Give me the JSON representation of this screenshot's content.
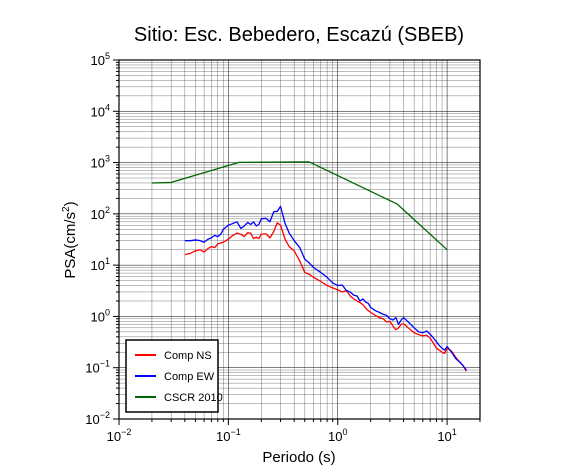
{
  "chart_data": {
    "type": "line",
    "title": "Sitio: Esc. Bebedero, Escazú (SBEB)",
    "xlabel": "Periodo (s)",
    "ylabel": "PSA(cm/s",
    "ylabel_sup": "2",
    "ylabel_close": ")",
    "xscale": "log",
    "yscale": "log",
    "xlim": [
      0.01,
      20
    ],
    "ylim": [
      0.01,
      100000
    ],
    "grid": true,
    "legend_position": "bottom-left",
    "x_ticks": [
      {
        "value": 0.01,
        "base": "10",
        "exp": "−2"
      },
      {
        "value": 0.1,
        "base": "10",
        "exp": "−1"
      },
      {
        "value": 1,
        "base": "10",
        "exp": "0"
      },
      {
        "value": 10,
        "base": "10",
        "exp": "1"
      }
    ],
    "y_ticks": [
      {
        "value": 0.01,
        "base": "10",
        "exp": "−2"
      },
      {
        "value": 0.1,
        "base": "10",
        "exp": "−1"
      },
      {
        "value": 1,
        "base": "10",
        "exp": "0"
      },
      {
        "value": 10,
        "base": "10",
        "exp": "1"
      },
      {
        "value": 100,
        "base": "10",
        "exp": "2"
      },
      {
        "value": 1000,
        "base": "10",
        "exp": "3"
      },
      {
        "value": 10000,
        "base": "10",
        "exp": "4"
      },
      {
        "value": 100000,
        "base": "10",
        "exp": "5"
      }
    ],
    "series": [
      {
        "name": "Comp NS",
        "color": "#ff0000",
        "x": [
          0.04,
          0.045,
          0.05,
          0.055,
          0.06,
          0.065,
          0.07,
          0.075,
          0.08,
          0.085,
          0.09,
          0.1,
          0.11,
          0.12,
          0.13,
          0.14,
          0.15,
          0.16,
          0.17,
          0.18,
          0.19,
          0.2,
          0.22,
          0.24,
          0.26,
          0.28,
          0.3,
          0.33,
          0.36,
          0.4,
          0.45,
          0.5,
          0.55,
          0.6,
          0.7,
          0.8,
          0.9,
          1.0,
          1.1,
          1.2,
          1.3,
          1.4,
          1.5,
          1.6,
          1.7,
          1.8,
          1.9,
          2.0,
          2.2,
          2.4,
          2.6,
          2.8,
          3.0,
          3.2,
          3.4,
          3.6,
          3.8,
          4.0,
          4.5,
          5.0,
          5.5,
          6.0,
          6.5,
          7.0,
          7.5,
          8.0,
          8.5,
          9.0,
          9.5,
          10.0,
          11.0,
          12.0,
          13.0,
          14.0,
          15.0
        ],
        "y": [
          16,
          17,
          19,
          20,
          18,
          21,
          23,
          22,
          26,
          27,
          28,
          32,
          38,
          42,
          40,
          36,
          43,
          42,
          33,
          35,
          33,
          40,
          41,
          34,
          45,
          67,
          60,
          32,
          23,
          19,
          12,
          7.2,
          6.6,
          5.8,
          4.8,
          4.0,
          3.6,
          3.3,
          3.0,
          3.2,
          2.5,
          2.2,
          2.0,
          1.85,
          1.7,
          1.45,
          1.3,
          1.2,
          1.05,
          0.95,
          0.9,
          0.78,
          0.8,
          0.65,
          0.55,
          0.6,
          0.7,
          0.72,
          0.58,
          0.48,
          0.44,
          0.42,
          0.43,
          0.38,
          0.3,
          0.24,
          0.22,
          0.2,
          0.19,
          0.24,
          0.21,
          0.16,
          0.13,
          0.11,
          0.085
        ]
      },
      {
        "name": "Comp EW",
        "color": "#0000ff",
        "x": [
          0.04,
          0.045,
          0.05,
          0.055,
          0.06,
          0.065,
          0.07,
          0.075,
          0.08,
          0.085,
          0.09,
          0.1,
          0.11,
          0.12,
          0.13,
          0.14,
          0.15,
          0.16,
          0.17,
          0.18,
          0.19,
          0.2,
          0.22,
          0.24,
          0.26,
          0.28,
          0.3,
          0.33,
          0.36,
          0.4,
          0.45,
          0.5,
          0.55,
          0.6,
          0.7,
          0.8,
          0.9,
          1.0,
          1.1,
          1.2,
          1.3,
          1.4,
          1.5,
          1.6,
          1.7,
          1.8,
          1.9,
          2.0,
          2.2,
          2.4,
          2.6,
          2.8,
          3.0,
          3.2,
          3.4,
          3.6,
          3.8,
          4.0,
          4.5,
          5.0,
          5.5,
          6.0,
          6.5,
          7.0,
          7.5,
          8.0,
          8.5,
          9.0,
          9.5,
          10.0,
          11.0,
          12.0,
          13.0,
          14.0,
          15.0
        ],
        "y": [
          30,
          30,
          31,
          30,
          28,
          32,
          34,
          38,
          36,
          40,
          50,
          60,
          65,
          70,
          52,
          58,
          68,
          62,
          70,
          58,
          62,
          80,
          82,
          70,
          110,
          112,
          140,
          65,
          42,
          30,
          22,
          13,
          11,
          9.0,
          7.2,
          5.8,
          4.5,
          4.0,
          4.1,
          3.2,
          3.0,
          2.6,
          2.5,
          2.0,
          2.2,
          1.9,
          1.8,
          1.5,
          1.3,
          1.2,
          1.1,
          1.05,
          0.9,
          0.85,
          0.95,
          0.7,
          0.85,
          0.95,
          0.75,
          0.6,
          0.5,
          0.48,
          0.52,
          0.45,
          0.38,
          0.32,
          0.27,
          0.24,
          0.22,
          0.26,
          0.2,
          0.15,
          0.13,
          0.11,
          0.09
        ]
      },
      {
        "name": "CSCR 2010",
        "color": "#006400",
        "x": [
          0.02,
          0.03,
          0.125,
          0.55,
          3.5,
          10.0
        ],
        "y": [
          400,
          410,
          1010,
          1030,
          155,
          20
        ]
      }
    ]
  }
}
